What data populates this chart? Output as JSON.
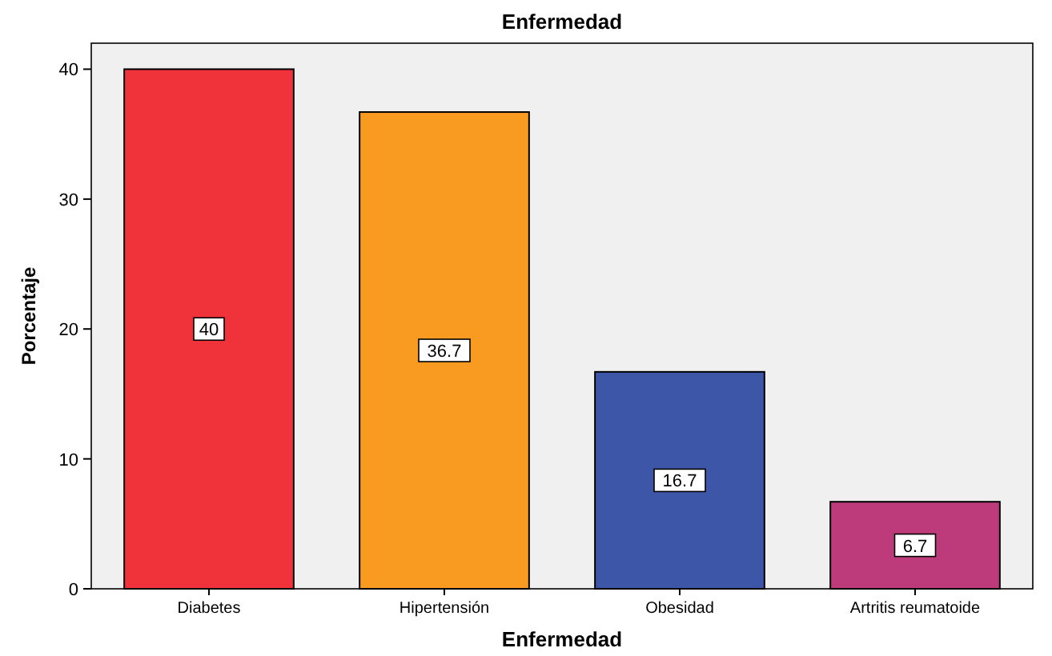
{
  "chart_data": {
    "type": "bar",
    "title": "Enfermedad",
    "xlabel": "Enfermedad",
    "ylabel": "Porcentaje",
    "categories": [
      "Diabetes",
      "Hipertensión",
      "Obesidad",
      "Artritis reumatoide"
    ],
    "values": [
      40,
      36.7,
      16.7,
      6.7
    ],
    "colors": [
      "#f0333b",
      "#f99b21",
      "#3d56a8",
      "#bd3b7a"
    ],
    "ylim": [
      0,
      42
    ],
    "yticks": [
      0,
      10,
      20,
      30,
      40
    ],
    "data_labels": true,
    "grid": false
  }
}
